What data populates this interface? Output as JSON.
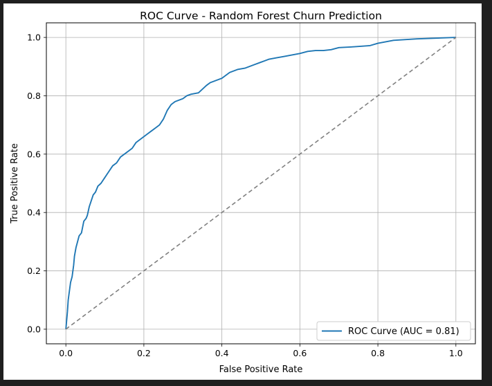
{
  "chart_data": {
    "type": "line",
    "title": "ROC Curve - Random Forest Churn Prediction",
    "xlabel": "False Positive Rate",
    "ylabel": "True Positive Rate",
    "xlim": [
      0.0,
      1.0
    ],
    "ylim": [
      0.0,
      1.0
    ],
    "xticks": [
      0.0,
      0.2,
      0.4,
      0.6,
      0.8,
      1.0
    ],
    "yticks": [
      0.0,
      0.2,
      0.4,
      0.6,
      0.8,
      1.0
    ],
    "tick_labels": [
      "0.0",
      "0.2",
      "0.4",
      "0.6",
      "0.8",
      "1.0"
    ],
    "grid": true,
    "legend_position": "lower-right",
    "series": [
      {
        "name": "ROC Curve (AUC = 0.81)",
        "color": "#1f77b4",
        "style": "solid",
        "x": [
          0.0,
          0.002,
          0.004,
          0.006,
          0.008,
          0.01,
          0.012,
          0.016,
          0.02,
          0.022,
          0.026,
          0.03,
          0.034,
          0.04,
          0.046,
          0.052,
          0.055,
          0.06,
          0.065,
          0.07,
          0.076,
          0.082,
          0.09,
          0.1,
          0.11,
          0.12,
          0.13,
          0.14,
          0.15,
          0.16,
          0.17,
          0.18,
          0.19,
          0.2,
          0.21,
          0.22,
          0.23,
          0.24,
          0.25,
          0.26,
          0.27,
          0.28,
          0.29,
          0.3,
          0.31,
          0.32,
          0.34,
          0.36,
          0.37,
          0.38,
          0.4,
          0.42,
          0.44,
          0.46,
          0.48,
          0.5,
          0.52,
          0.54,
          0.56,
          0.6,
          0.62,
          0.64,
          0.66,
          0.68,
          0.7,
          0.74,
          0.78,
          0.8,
          0.84,
          0.9,
          1.0
        ],
        "y": [
          0.0,
          0.03,
          0.06,
          0.1,
          0.12,
          0.14,
          0.16,
          0.18,
          0.22,
          0.25,
          0.28,
          0.3,
          0.32,
          0.33,
          0.37,
          0.38,
          0.39,
          0.42,
          0.44,
          0.46,
          0.47,
          0.49,
          0.5,
          0.52,
          0.54,
          0.56,
          0.57,
          0.59,
          0.6,
          0.61,
          0.62,
          0.64,
          0.65,
          0.66,
          0.67,
          0.68,
          0.69,
          0.7,
          0.72,
          0.75,
          0.77,
          0.78,
          0.785,
          0.79,
          0.8,
          0.805,
          0.81,
          0.835,
          0.845,
          0.85,
          0.86,
          0.88,
          0.89,
          0.895,
          0.905,
          0.915,
          0.925,
          0.93,
          0.935,
          0.945,
          0.952,
          0.955,
          0.955,
          0.958,
          0.965,
          0.968,
          0.972,
          0.98,
          0.99,
          0.995,
          1.0
        ]
      },
      {
        "name": "",
        "color": "#808080",
        "style": "dashed",
        "x": [
          0.0,
          1.0
        ],
        "y": [
          0.0,
          1.0
        ]
      }
    ]
  }
}
